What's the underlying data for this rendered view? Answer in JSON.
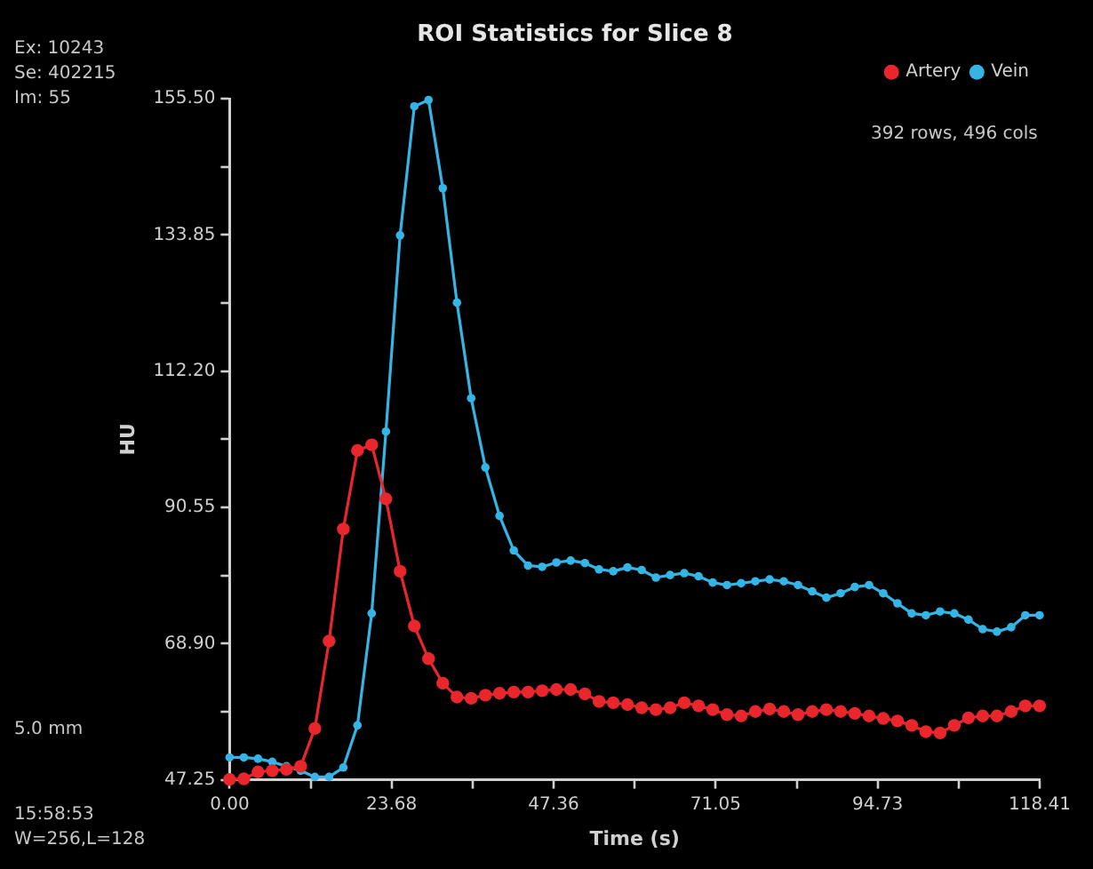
{
  "chart_data": {
    "type": "line",
    "title": "ROI Statistics for Slice 8",
    "xlabel": "Time (s)",
    "ylabel": "HU",
    "x": [
      0,
      2.08,
      4.15,
      6.23,
      8.31,
      10.39,
      12.46,
      14.54,
      16.62,
      18.69,
      20.77,
      22.85,
      24.92,
      27.0,
      29.08,
      31.16,
      33.23,
      35.31,
      37.39,
      39.46,
      41.54,
      43.62,
      45.69,
      47.77,
      49.85,
      51.93,
      54.0,
      56.08,
      58.16,
      60.23,
      62.31,
      64.39,
      66.46,
      68.54,
      70.62,
      72.7,
      74.77,
      76.85,
      78.93,
      81.0,
      83.08,
      85.16,
      87.23,
      89.31,
      91.39,
      93.47,
      95.54,
      97.62,
      99.7,
      101.77,
      103.85,
      105.93,
      108.0,
      110.08,
      112.16,
      114.24,
      116.31,
      118.39
    ],
    "series": [
      {
        "name": "Artery",
        "color": "#e8262b",
        "values": [
          47.3,
          47.4,
          48.5,
          48.7,
          48.9,
          49.4,
          55.4,
          69.3,
          87.1,
          99.6,
          100.5,
          91.9,
          80.4,
          71.7,
          66.5,
          62.6,
          60.4,
          60.2,
          60.7,
          61.0,
          61.2,
          61.2,
          61.4,
          61.6,
          61.6,
          60.9,
          59.7,
          59.5,
          59.2,
          58.7,
          58.4,
          58.7,
          59.5,
          59.0,
          58.4,
          57.6,
          57.4,
          58.1,
          58.5,
          58.1,
          57.6,
          58.1,
          58.4,
          58.1,
          57.8,
          57.4,
          57.0,
          56.6,
          55.9,
          54.9,
          54.7,
          55.9,
          57.1,
          57.4,
          57.4,
          58.1,
          59.0,
          59.0
        ]
      },
      {
        "name": "Vein",
        "color": "#33b5e5",
        "values": [
          50.8,
          50.8,
          50.6,
          50.1,
          49.4,
          48.7,
          47.7,
          47.7,
          49.2,
          55.9,
          73.7,
          102.6,
          133.8,
          154.3,
          155.3,
          141.3,
          123.1,
          107.9,
          96.9,
          89.2,
          83.7,
          81.3,
          81.1,
          81.8,
          82.1,
          81.7,
          80.7,
          80.4,
          81.0,
          80.6,
          79.4,
          79.8,
          80.1,
          79.6,
          78.6,
          78.2,
          78.5,
          78.8,
          79.1,
          78.8,
          78.2,
          77.2,
          76.2,
          76.9,
          77.9,
          78.2,
          76.9,
          75.3,
          73.7,
          73.4,
          74.0,
          73.7,
          72.7,
          71.2,
          70.8,
          71.5,
          73.4,
          73.4
        ]
      }
    ],
    "xlim": [
      0,
      118.41
    ],
    "xticks": [
      {
        "value": 0,
        "label": "0.00"
      },
      {
        "value": 11.84,
        "label": null
      },
      23.68,
      {
        "value": 35.52,
        "label": null
      },
      47.36,
      {
        "value": 59.2,
        "label": null
      },
      71.05,
      {
        "value": 82.89,
        "label": null
      },
      94.73,
      {
        "value": 106.57,
        "label": null
      },
      118.41
    ],
    "ylim": [
      47.25,
      155.5
    ],
    "yticks": [
      47.25,
      {
        "value": 58.075,
        "label": null
      },
      {
        "value": 68.9,
        "label": "68.90"
      },
      {
        "value": 79.725,
        "label": null
      },
      90.55,
      {
        "value": 101.375,
        "label": null
      },
      {
        "value": 112.2,
        "label": "112.20"
      },
      {
        "value": 123.025,
        "label": null
      },
      133.85,
      {
        "value": 144.675,
        "label": null
      },
      {
        "value": 155.5,
        "label": "155.50"
      }
    ],
    "grid": false,
    "legend": "top right",
    "marker": "circle",
    "line_style": "solid",
    "annotations": [
      "Ex: 10243",
      "Se: 402215",
      "Im: 55",
      "5.0 mm",
      "15:58:53",
      "W=256,L=128",
      "392 rows, 496 cols"
    ]
  }
}
